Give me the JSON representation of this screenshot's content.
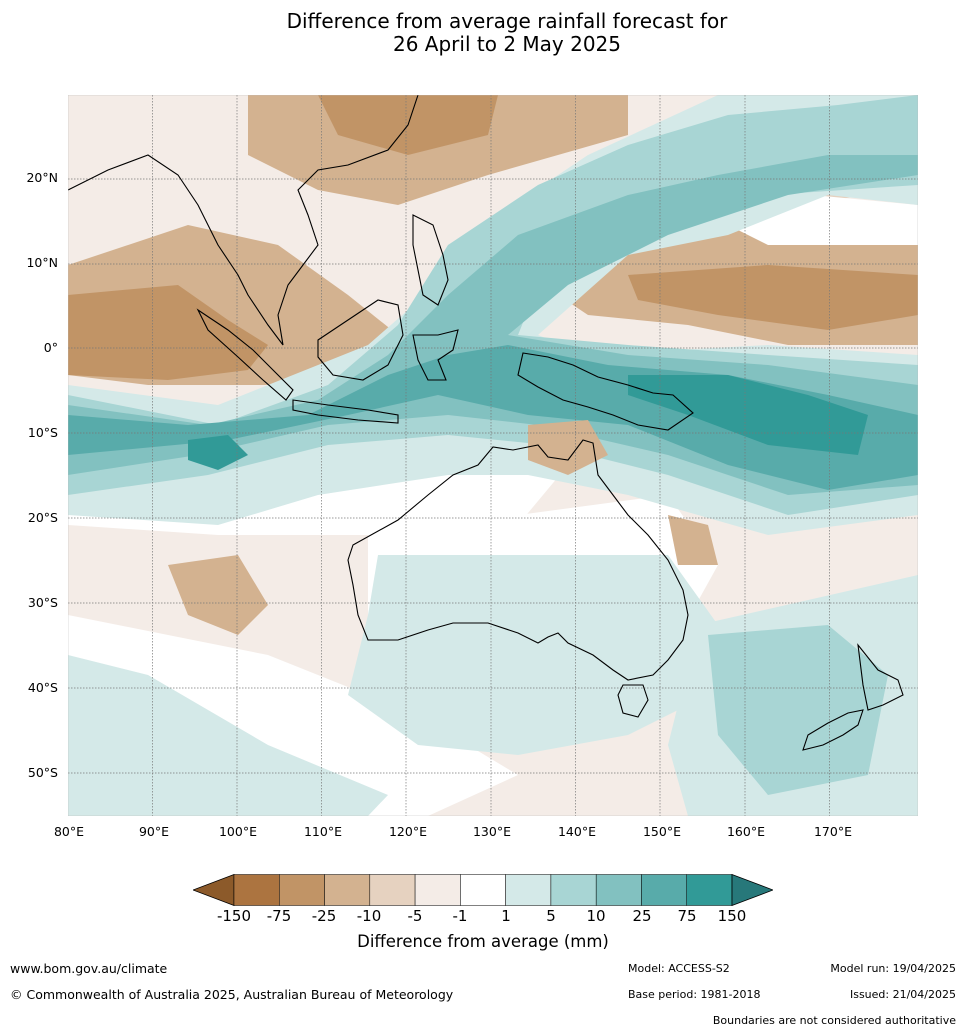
{
  "title_line1": "Difference from average rainfall forecast for",
  "title_line2": "26 April to 2 May 2025",
  "map": {
    "lat_labels": [
      "20°N",
      "10°N",
      "0°",
      "10°S",
      "20°S",
      "30°S",
      "40°S",
      "50°S"
    ],
    "lon_labels": [
      "80°E",
      "90°E",
      "100°E",
      "110°E",
      "120°E",
      "130°E",
      "140°E",
      "150°E",
      "160°E",
      "170°E"
    ],
    "extent": {
      "lon_min": 80,
      "lon_max": 180,
      "lat_min": -55,
      "lat_max": 30
    }
  },
  "legend": {
    "title": "Difference from average (mm)",
    "ticks": [
      "-150",
      "-75",
      "-25",
      "-10",
      "-5",
      "-1",
      "1",
      "5",
      "10",
      "25",
      "75",
      "150"
    ],
    "colors": [
      "#8c5a2a",
      "#ac7440",
      "#c19466",
      "#d3b290",
      "#e6d2c0",
      "#f4ece7",
      "#ffffff",
      "#d4e9e8",
      "#a8d5d4",
      "#82c1c0",
      "#58abaa",
      "#319a97",
      "#27787a"
    ]
  },
  "footer": {
    "website": "www.bom.gov.au/climate",
    "copyright": "© Commonwealth of Australia 2025, Australian Bureau of Meteorology",
    "model": "Model: ACCESS-S2",
    "model_run": "Model run: 19/04/2025",
    "base_period": "Base period: 1981-2018",
    "issued": "Issued: 21/04/2025",
    "disclaimer": "Boundaries are not considered authoritative"
  }
}
